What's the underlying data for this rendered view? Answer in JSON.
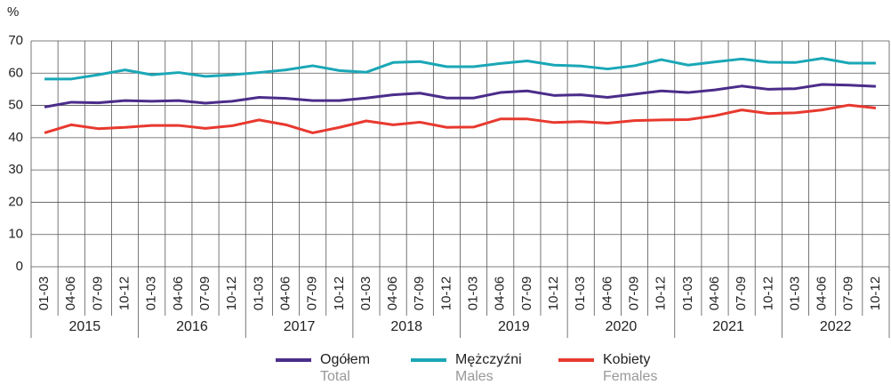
{
  "chart_data": {
    "type": "line",
    "y_unit": "%",
    "categories": [
      "01-03",
      "04-06",
      "07-09",
      "10-12",
      "01-03",
      "04-06",
      "07-09",
      "10-12",
      "01-03",
      "04-06",
      "07-09",
      "10-12",
      "01-03",
      "04-06",
      "07-09",
      "10-12",
      "01-03",
      "04-06",
      "07-09",
      "10-12",
      "01-03",
      "04-06",
      "07-09",
      "10-12",
      "01-03",
      "04-06",
      "07-09",
      "10-12",
      "01-03",
      "04-06",
      "07-09",
      "10-12"
    ],
    "year_groups": [
      "2015",
      "2016",
      "2017",
      "2018",
      "2019",
      "2020",
      "2021",
      "2022"
    ],
    "series": [
      {
        "name": "Ogółem",
        "name_en": "Total",
        "color": "#4b2c8a",
        "values": [
          49.5,
          51,
          50.8,
          51.5,
          51.3,
          51.5,
          50.7,
          51.3,
          52.5,
          52.2,
          51.5,
          51.5,
          52.3,
          53.3,
          53.8,
          52.3,
          52.3,
          54,
          54.5,
          53.1,
          53.3,
          52.5,
          53.5,
          54.5,
          54,
          54.8,
          56,
          55,
          55.2,
          56.5,
          56.3,
          55.9
        ]
      },
      {
        "name": "Mężczyźni",
        "name_en": "Males",
        "color": "#1aa7b7",
        "values": [
          58.2,
          58.2,
          59.5,
          61,
          59.5,
          60.2,
          59,
          59.5,
          60.2,
          61,
          62.3,
          60.8,
          60.3,
          63.3,
          63.6,
          62,
          62,
          63,
          63.8,
          62.5,
          62.2,
          61.3,
          62.3,
          64.2,
          62.5,
          63.5,
          64.4,
          63.4,
          63.3,
          64.6,
          63.1,
          63.1
        ]
      },
      {
        "name": "Kobiety",
        "name_en": "Females",
        "color": "#e8392f",
        "values": [
          41.5,
          44,
          42.8,
          43.2,
          43.8,
          43.8,
          42.9,
          43.7,
          45.5,
          44,
          41.5,
          43.2,
          45.2,
          44,
          44.8,
          43.2,
          43.3,
          45.8,
          45.8,
          44.7,
          45,
          44.5,
          45.3,
          45.5,
          45.6,
          46.8,
          48.6,
          47.5,
          47.7,
          48.6,
          50.1,
          49.2
        ]
      }
    ],
    "ylim": [
      0,
      70
    ],
    "yticks": [
      0,
      10,
      20,
      30,
      40,
      50,
      60,
      70
    ],
    "grid": true
  }
}
